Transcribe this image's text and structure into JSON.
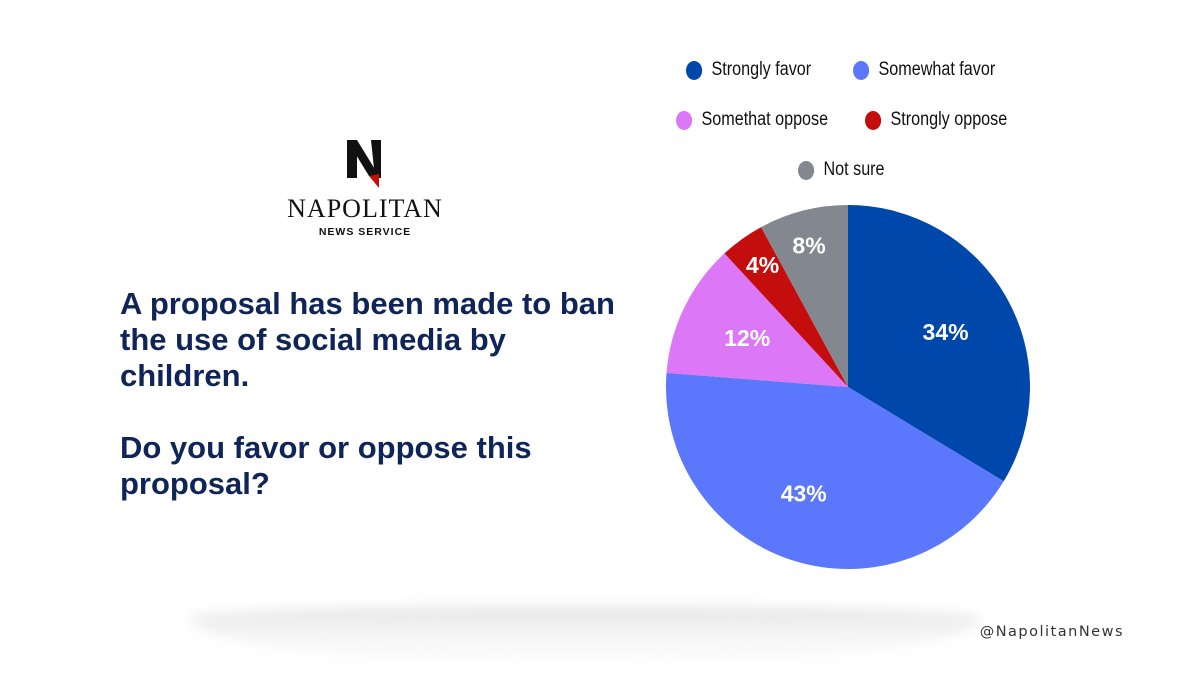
{
  "logo": {
    "name": "NAPOLITAN",
    "subtitle": "NEWS SERVICE",
    "mark_letter": "N"
  },
  "question": {
    "line1": "A proposal has been made to ban the use of social media by children.",
    "line2": "Do you favor or oppose this proposal?"
  },
  "handle": "@NapolitanNews",
  "chart_data": {
    "type": "pie",
    "start_angle_deg": 0,
    "direction": "clockwise",
    "slices": [
      {
        "name": "Strongly favor",
        "value": 34,
        "label": "34%",
        "color": "#0047ab"
      },
      {
        "name": "Somewhat favor",
        "value": 43,
        "label": "43%",
        "color": "#5b78fc"
      },
      {
        "name": "Somethat oppose",
        "value": 12,
        "label": "12%",
        "color": "#dc78f8"
      },
      {
        "name": "Strongly oppose",
        "value": 4,
        "label": "4%",
        "color": "#c40d0d"
      },
      {
        "name": "Not sure",
        "value": 8,
        "label": "8%",
        "color": "#83878f"
      }
    ],
    "legend_placement": "top"
  }
}
